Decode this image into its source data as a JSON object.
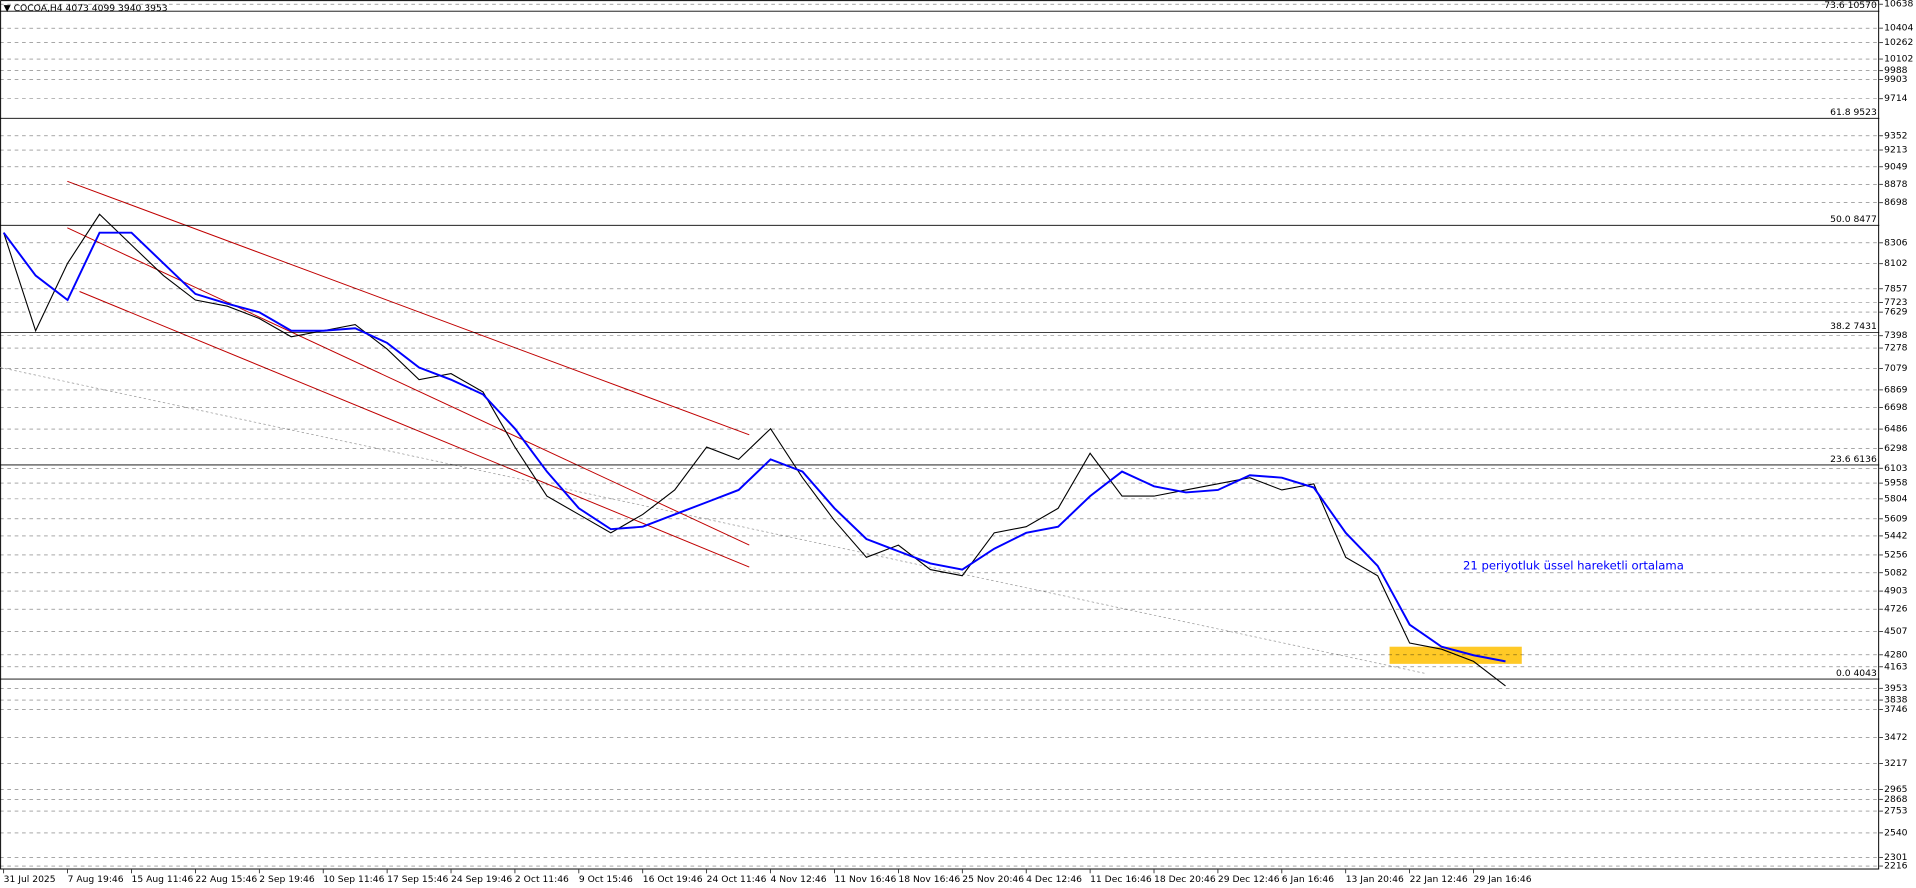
{
  "chart_data": {
    "type": "line",
    "title": "▼ COCOA,H4  4073 4099 3940 3953",
    "annotation": "21 periyotluk üssel hareketli ortalama",
    "categories": [
      "31 Jul 2025",
      null,
      "7 Aug 19:46",
      null,
      "15 Aug 11:46",
      null,
      "22 Aug 15:46",
      null,
      "2 Sep 19:46",
      null,
      "10 Sep 11:46",
      null,
      "17 Sep 15:46",
      null,
      "24 Sep 19:46",
      null,
      "2 Oct 11:46",
      null,
      "9 Oct 15:46",
      null,
      "16 Oct 19:46",
      null,
      "24 Oct 11:46",
      null,
      "4 Nov 12:46",
      null,
      "11 Nov 16:46",
      null,
      "18 Nov 16:46",
      null,
      "25 Nov 20:46",
      null,
      "4 Dec 12:46",
      null,
      "11 Dec 16:46",
      null,
      "18 Dec 20:46",
      null,
      "29 Dec 12:46",
      null,
      "6 Jan 16:46",
      null,
      "13 Jan 20:46",
      null,
      "22 Jan 12:46",
      null,
      "29 Jan 16:46",
      null
    ],
    "series": [
      {
        "color": "#000000",
        "values": [
          8405,
          7447,
          8106,
          8585,
          8285,
          7986,
          7747,
          7687,
          7567,
          7388,
          7447,
          7507,
          7268,
          6969,
          7028,
          6849,
          6310,
          5831,
          5652,
          5472,
          5652,
          5891,
          6310,
          6190,
          6490,
          6011,
          5592,
          5233,
          5352,
          5113,
          5053,
          5472,
          5532,
          5712,
          6250,
          5831,
          5831,
          5891,
          5951,
          6011,
          5891,
          5951,
          5233,
          5053,
          4395,
          4335,
          4216,
          3976
        ]
      },
      {
        "color": "#0000ff",
        "values": [
          8405,
          7986,
          7747,
          8405,
          8405,
          8106,
          7807,
          7711,
          7627,
          7447,
          7447,
          7471,
          7328,
          7088,
          6969,
          6825,
          6490,
          6071,
          5712,
          5508,
          5532,
          5652,
          5771,
          5891,
          6190,
          6071,
          5712,
          5412,
          5292,
          5173,
          5113,
          5317,
          5472,
          5532,
          5831,
          6071,
          5927,
          5867,
          5891,
          6035,
          6011,
          5915,
          5472,
          5149,
          4575,
          4359,
          4276,
          4216
        ]
      }
    ],
    "ylim": [
      2181,
      10679
    ],
    "yticks": [
      10638,
      10404,
      10262,
      10102,
      9988,
      9903,
      9714,
      9352,
      9213,
      9049,
      8878,
      8698,
      8306,
      8102,
      7857,
      7723,
      7629,
      7398,
      7278,
      7079,
      6869,
      6698,
      6486,
      6298,
      6103,
      5958,
      5804,
      5609,
      5442,
      5256,
      5082,
      4903,
      4726,
      4507,
      4280,
      4163,
      3953,
      3838,
      3746,
      3472,
      3217,
      2965,
      2868,
      2753,
      2540,
      2301,
      2216
    ],
    "fib_levels": [
      {
        "ratio": "73.6",
        "value": 10570
      },
      {
        "ratio": "61.8",
        "value": 9523
      },
      {
        "ratio": "50.0",
        "value": 8477
      },
      {
        "ratio": "38.2",
        "value": 7431
      },
      {
        "ratio": "23.6",
        "value": 6136
      },
      {
        "ratio": "0.0",
        "value": 4043
      }
    ],
    "grid": true
  }
}
